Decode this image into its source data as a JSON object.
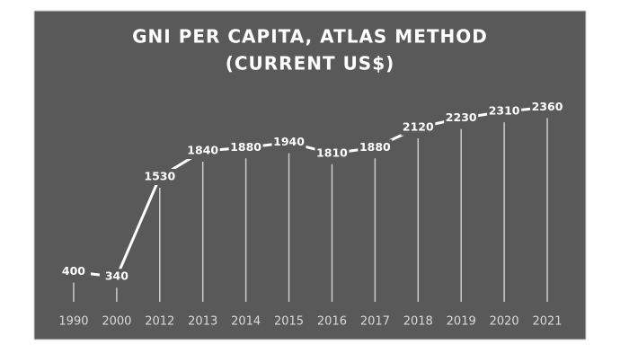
{
  "chart_data": {
    "type": "line",
    "title": [
      "GNI PER CAPITA, ATLAS METHOD",
      "(CURRENT US$)"
    ],
    "categories": [
      "1990",
      "2000",
      "2012",
      "2013",
      "2014",
      "2015",
      "2016",
      "2017",
      "2018",
      "2019",
      "2020",
      "2021"
    ],
    "values": [
      400,
      340,
      1530,
      1840,
      1880,
      1940,
      1810,
      1880,
      2120,
      2230,
      2310,
      2360
    ],
    "color": "#ffffff",
    "ylim": [
      0,
      2600
    ]
  }
}
